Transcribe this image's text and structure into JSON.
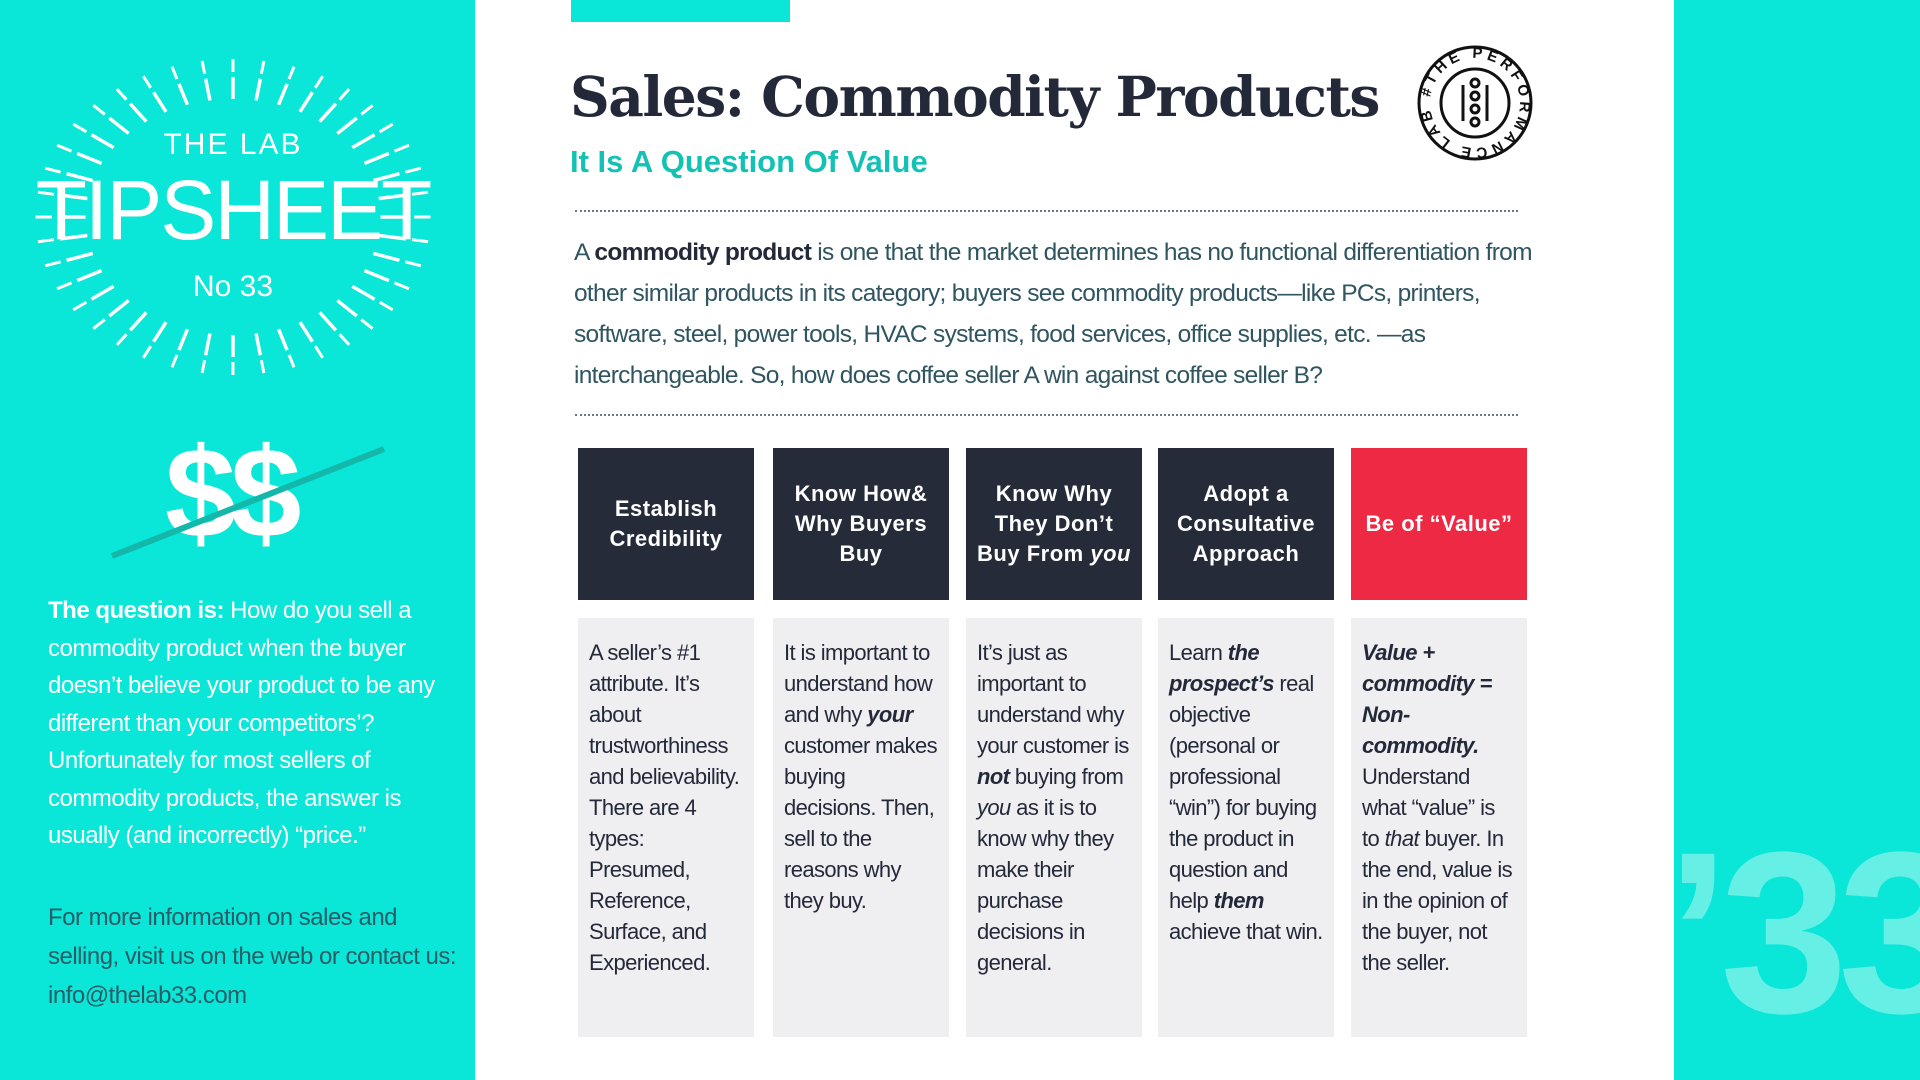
{
  "brand": {
    "the_lab": "THE LAB",
    "tipsheet": "TIPSHEET",
    "number": "No 33",
    "dollars": "$$",
    "corner_number": "’33",
    "badge_text": "#THE PERFORMANCE LAB"
  },
  "sidebar": {
    "question_lead": "The question is:",
    "question_text": " How do you sell a commodity product when the buyer doesn’t believe your product to be any different than your competitors’? Unfortunately for most sellers of commodity products, the answer is usually (and incorrectly) “price.”",
    "contact": "For more information on sales and selling, visit us on the web or contact us: info@thelab33.com"
  },
  "header": {
    "title": "Sales: Commodity Products",
    "subtitle": "It Is A Question Of Value"
  },
  "intro": {
    "pre": "A ",
    "bold": "commodity product",
    "post": " is one that the market determines has no functional differentiation from other similar products in its category; buyers see commodity products—like PCs, printers, software, steel, power tools, HVAC systems, food services, office supplies, etc. —as interchangeable. So, how does coffee seller A win against coffee seller B?"
  },
  "colors": {
    "teal": "#0ae6d8",
    "navy": "#252b38",
    "red": "#ee2944",
    "card_bg": "#efeff1"
  },
  "cards": [
    {
      "title": [
        {
          "t": "Establish Credibility"
        }
      ],
      "red": false,
      "body": [
        {
          "t": "A seller’s #1 attribute. It’s about trustworthiness and believability. There are 4 types: Presumed, Reference, Surface, and Experienced."
        }
      ]
    },
    {
      "title": [
        {
          "t": "Know How& Why Buyers Buy"
        }
      ],
      "red": false,
      "body": [
        {
          "t": "It is important to understand how and why "
        },
        {
          "t": "your",
          "s": "em"
        },
        {
          "t": " customer makes buying decisions. Then, sell to the reasons why they buy."
        }
      ]
    },
    {
      "title": [
        {
          "t": "Know Why They Don’t Buy From "
        },
        {
          "t": "you",
          "s": "it"
        }
      ],
      "red": false,
      "body": [
        {
          "t": "It’s just as important to understand why your customer is "
        },
        {
          "t": "not",
          "s": "em"
        },
        {
          "t": " buying from "
        },
        {
          "t": "you",
          "s": "it"
        },
        {
          "t": " as it is to know why they make their purchase decisions in general."
        }
      ]
    },
    {
      "title": [
        {
          "t": "Adopt a Consultative Approach"
        }
      ],
      "red": false,
      "body": [
        {
          "t": "Learn "
        },
        {
          "t": "the prospect’s",
          "s": "em"
        },
        {
          "t": " real objective (personal or professional “win”) for buying the product in question and help "
        },
        {
          "t": "them",
          "s": "em"
        },
        {
          "t": " achieve that win."
        }
      ]
    },
    {
      "title": [
        {
          "t": "Be of “Value”"
        }
      ],
      "red": true,
      "body": [
        {
          "t": "Value + commodity = Non-commodity.",
          "s": "em"
        },
        {
          "t": " Understand what “value” is to "
        },
        {
          "t": "that",
          "s": "it"
        },
        {
          "t": " buyer. In the end, value is in the opinion of the buyer, not the seller."
        }
      ]
    }
  ]
}
